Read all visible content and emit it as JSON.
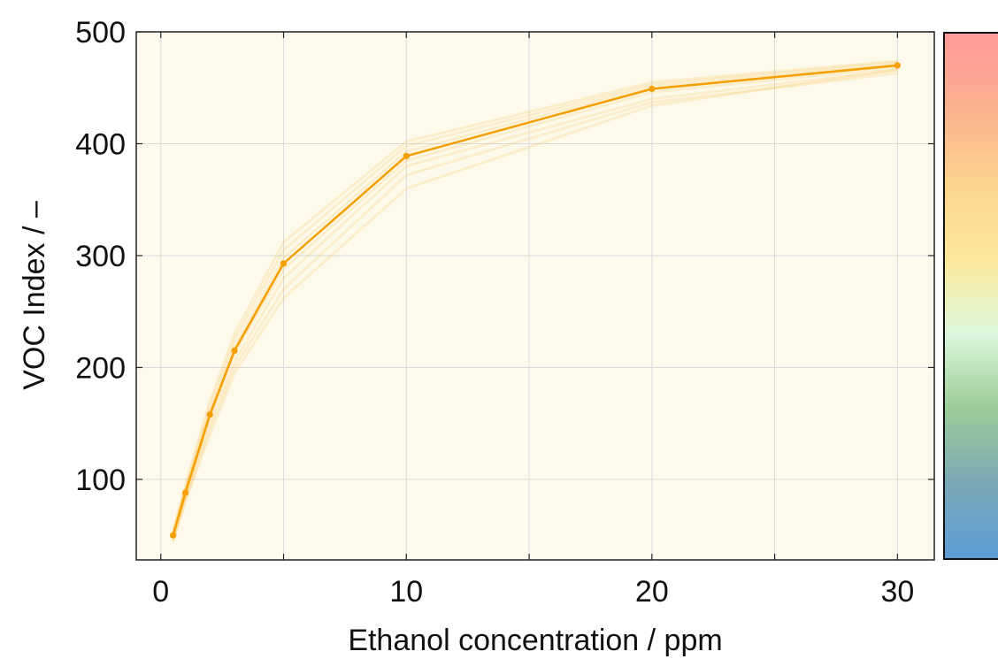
{
  "chart_data": {
    "type": "line",
    "xlabel": "Ethanol concentration  / ppm",
    "ylabel": "VOC Index / –",
    "xlim": [
      -1,
      31.5
    ],
    "ylim": [
      28,
      500
    ],
    "x_ticks": [
      0,
      5,
      10,
      15,
      20,
      25,
      30
    ],
    "x_tick_labels": [
      "0",
      "",
      "10",
      "",
      "20",
      "",
      "30"
    ],
    "y_ticks": [
      100,
      200,
      300,
      400,
      500
    ],
    "y_tick_labels": [
      "100",
      "200",
      "300",
      "400",
      "500"
    ],
    "grid": true,
    "legend": "none",
    "background_color": "#fdfaec",
    "series": [
      {
        "x": [
          0.5,
          1,
          2,
          3,
          5,
          10,
          20,
          30
        ],
        "values": [
          50,
          88,
          158,
          215,
          293,
          389,
          449,
          470
        ],
        "color": "#f5a000"
      }
    ],
    "spread_series": [
      [
        47,
        85,
        150,
        205,
        280,
        380,
        440,
        466
      ],
      [
        53,
        92,
        165,
        225,
        305,
        398,
        453,
        473
      ],
      [
        45,
        82,
        145,
        200,
        270,
        372,
        437,
        463
      ],
      [
        55,
        95,
        170,
        230,
        312,
        402,
        455,
        474
      ],
      [
        49,
        87,
        155,
        212,
        288,
        385,
        446,
        468
      ],
      [
        51,
        90,
        161,
        219,
        298,
        393,
        451,
        471
      ],
      [
        44,
        80,
        140,
        195,
        262,
        360,
        434,
        466
      ]
    ],
    "spread_color": "#f5a000",
    "colorbar": {
      "stops": [
        "#ff9a9a",
        "#fbb08e",
        "#fcd48c",
        "#fde898",
        "#dcf7dc",
        "#9ccc98",
        "#7aa8b6",
        "#5c9cd8"
      ]
    }
  }
}
